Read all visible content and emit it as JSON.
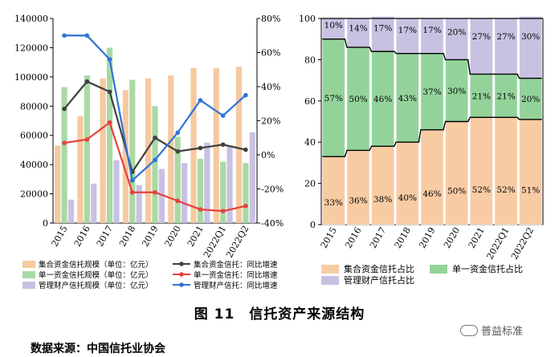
{
  "figure": {
    "caption": "图 11　信托资产来源结构",
    "source": "数据来源：中国信托业协会",
    "watermark": "普益标准"
  },
  "colors": {
    "jihe": "#f6c9a0",
    "danyi": "#a9d9a5",
    "guanli": "#c8c1e2",
    "jihe_line": "#404040",
    "danyi_line": "#e8403c",
    "guanli_line": "#2f73d6",
    "stack_jihe": "#f8cba3",
    "stack_danyi": "#93d39a",
    "stack_guanli": "#c8c1e2"
  },
  "chart_data": [
    {
      "type": "bar+line",
      "title": "",
      "categories": [
        "2015",
        "2016",
        "2017",
        "2018",
        "2019",
        "2020",
        "2021",
        "2022Q1",
        "2022Q2"
      ],
      "y_left": {
        "range": [
          0,
          140000
        ],
        "ticks": [
          0,
          20000,
          40000,
          60000,
          80000,
          100000,
          120000,
          140000
        ]
      },
      "y_right": {
        "range": [
          -40,
          80
        ],
        "ticks": [
          "-40%",
          "-20%",
          "0%",
          "20%",
          "40%",
          "60%",
          "80%"
        ],
        "tick_values": [
          -40,
          -20,
          0,
          20,
          40,
          60,
          80
        ]
      },
      "bar_series": [
        {
          "name": "集合资金信托规模（单位：亿元）",
          "color_key": "jihe",
          "values": [
            53000,
            73000,
            99000,
            91000,
            99000,
            101000,
            106000,
            106000,
            107000
          ]
        },
        {
          "name": "单一资金信托规模（单位：亿元）",
          "color_key": "danyi",
          "values": [
            93000,
            101000,
            120000,
            98000,
            80000,
            59000,
            44000,
            42000,
            41000
          ]
        },
        {
          "name": "管理财产信托规模（单位：亿元）",
          "color_key": "guanli",
          "values": [
            16000,
            27000,
            43000,
            26000,
            37000,
            41000,
            55000,
            53000,
            62000
          ]
        }
      ],
      "line_series": [
        {
          "name": "集合资金信托：同比增速",
          "color_key": "jihe_line",
          "values": [
            27,
            43,
            37,
            -10,
            10,
            2,
            4,
            6,
            3
          ]
        },
        {
          "name": "单一资金信托：同比增速",
          "color_key": "danyi_line",
          "values": [
            7,
            9,
            19,
            -22,
            -22,
            -27,
            -32,
            -33,
            -30
          ]
        },
        {
          "name": "管理财产信托：同比增速",
          "color_key": "guanli_line",
          "values": [
            70,
            70,
            56,
            -15,
            -3,
            13,
            32,
            23,
            35
          ]
        }
      ]
    },
    {
      "type": "stacked-bar",
      "title": "",
      "categories": [
        "2015",
        "2016",
        "2017",
        "2018",
        "2019",
        "2020",
        "2021",
        "2022Q1",
        "2022Q2"
      ],
      "y": {
        "range": [
          0,
          100
        ],
        "ticks": [
          0,
          20,
          40,
          60,
          80,
          100
        ]
      },
      "series": [
        {
          "name": "集合资金信托占比",
          "color_key": "stack_jihe",
          "values": [
            33,
            36,
            38,
            40,
            46,
            50,
            52,
            52,
            51
          ],
          "labels": [
            "33%",
            "36%",
            "38%",
            "40%",
            "46%",
            "50%",
            "52%",
            "52%",
            "51%"
          ]
        },
        {
          "name": "单一资金信托占比",
          "color_key": "stack_danyi",
          "values": [
            57,
            50,
            46,
            43,
            37,
            30,
            21,
            21,
            20
          ],
          "labels": [
            "57%",
            "50%",
            "46%",
            "43%",
            "37%",
            "30%",
            "21%",
            "21%",
            "20%"
          ]
        },
        {
          "name": "管理财产信托占比",
          "color_key": "stack_guanli",
          "values": [
            10,
            14,
            17,
            17,
            17,
            20,
            27,
            27,
            30
          ],
          "labels": [
            "10%",
            "14%",
            "17%",
            "17%",
            "17%",
            "20%",
            "27%",
            "27%",
            "30%"
          ]
        }
      ]
    }
  ]
}
